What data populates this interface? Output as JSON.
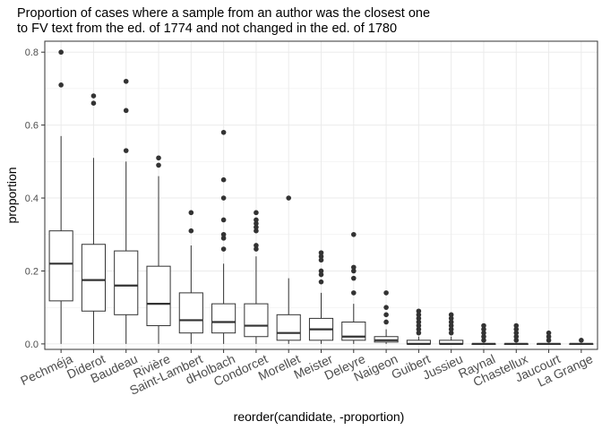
{
  "chart_data": {
    "type": "boxplot",
    "title_lines": [
      "Proportion of cases where a sample from an author was the closest one",
      "to FV text from the ed. of 1774 and not changed in the ed. of 1780"
    ],
    "xlabel": "reorder(candidate, -proportion)",
    "ylabel": "proportion",
    "ylim": [
      -0.015,
      0.83
    ],
    "yticks": [
      "0.0",
      "0.2",
      "0.4",
      "0.6",
      "0.8"
    ],
    "grid": true,
    "colors": {
      "panel_bg": "#ffffff",
      "grid": "#ebebeb",
      "box": "#333333",
      "points": "#333333"
    },
    "categories": [
      "Pechméja",
      "Diderot",
      "Baudeau",
      "Rivière",
      "Saint-Lambert",
      "dHolbach",
      "Condorcet",
      "Morellet",
      "Meister",
      "Deleyre",
      "Naigeon",
      "Guibert",
      "Jussieu",
      "Raynal",
      "Chastellux",
      "Jaucourt",
      "La Grange"
    ],
    "boxes": [
      {
        "category": "Pechméja",
        "min": 0.0,
        "q1": 0.118,
        "median": 0.22,
        "q3": 0.31,
        "max": 0.57,
        "outliers": [
          0.71,
          0.8
        ]
      },
      {
        "category": "Diderot",
        "min": 0.0,
        "q1": 0.09,
        "median": 0.175,
        "q3": 0.273,
        "max": 0.51,
        "outliers": [
          0.66,
          0.68
        ]
      },
      {
        "category": "Baudeau",
        "min": 0.0,
        "q1": 0.08,
        "median": 0.16,
        "q3": 0.255,
        "max": 0.5,
        "outliers": [
          0.53,
          0.64,
          0.72
        ]
      },
      {
        "category": "Rivière",
        "min": 0.0,
        "q1": 0.05,
        "median": 0.11,
        "q3": 0.213,
        "max": 0.46,
        "outliers": [
          0.49,
          0.51
        ]
      },
      {
        "category": "Saint-Lambert",
        "min": 0.0,
        "q1": 0.03,
        "median": 0.065,
        "q3": 0.14,
        "max": 0.27,
        "outliers": [
          0.31,
          0.36
        ]
      },
      {
        "category": "dHolbach",
        "min": 0.0,
        "q1": 0.03,
        "median": 0.06,
        "q3": 0.11,
        "max": 0.22,
        "outliers": [
          0.26,
          0.29,
          0.3,
          0.34,
          0.4,
          0.45,
          0.58
        ]
      },
      {
        "category": "Condorcet",
        "min": 0.0,
        "q1": 0.02,
        "median": 0.05,
        "q3": 0.11,
        "max": 0.24,
        "outliers": [
          0.26,
          0.27,
          0.31,
          0.32,
          0.33,
          0.34,
          0.36
        ]
      },
      {
        "category": "Morellet",
        "min": 0.0,
        "q1": 0.01,
        "median": 0.03,
        "q3": 0.08,
        "max": 0.18,
        "outliers": [
          0.4
        ]
      },
      {
        "category": "Meister",
        "min": 0.0,
        "q1": 0.01,
        "median": 0.04,
        "q3": 0.07,
        "max": 0.14,
        "outliers": [
          0.17,
          0.19,
          0.2,
          0.23,
          0.24,
          0.25
        ]
      },
      {
        "category": "Deleyre",
        "min": 0.0,
        "q1": 0.01,
        "median": 0.02,
        "q3": 0.06,
        "max": 0.11,
        "outliers": [
          0.14,
          0.18,
          0.2,
          0.21,
          0.3
        ]
      },
      {
        "category": "Naigeon",
        "min": 0.0,
        "q1": 0.005,
        "median": 0.01,
        "q3": 0.02,
        "max": 0.04,
        "outliers": [
          0.06,
          0.08,
          0.1,
          0.14
        ]
      },
      {
        "category": "Guibert",
        "min": 0.0,
        "q1": 0.0,
        "median": 0.0,
        "q3": 0.01,
        "max": 0.02,
        "outliers": [
          0.03,
          0.04,
          0.05,
          0.06,
          0.07,
          0.08,
          0.09
        ]
      },
      {
        "category": "Jussieu",
        "min": 0.0,
        "q1": 0.0,
        "median": 0.0,
        "q3": 0.01,
        "max": 0.02,
        "outliers": [
          0.03,
          0.04,
          0.05,
          0.06,
          0.07,
          0.08
        ]
      },
      {
        "category": "Raynal",
        "min": 0.0,
        "q1": 0.0,
        "median": 0.0,
        "q3": 0.0,
        "max": 0.0,
        "outliers": [
          0.01,
          0.02,
          0.03,
          0.04,
          0.05
        ]
      },
      {
        "category": "Chastellux",
        "min": 0.0,
        "q1": 0.0,
        "median": 0.0,
        "q3": 0.0,
        "max": 0.0,
        "outliers": [
          0.01,
          0.02,
          0.03,
          0.04,
          0.05
        ]
      },
      {
        "category": "Jaucourt",
        "min": 0.0,
        "q1": 0.0,
        "median": 0.0,
        "q3": 0.0,
        "max": 0.0,
        "outliers": [
          0.01,
          0.02,
          0.03
        ]
      },
      {
        "category": "La Grange",
        "min": 0.0,
        "q1": 0.0,
        "median": 0.0,
        "q3": 0.0,
        "max": 0.0,
        "outliers": [
          0.01
        ]
      }
    ]
  }
}
